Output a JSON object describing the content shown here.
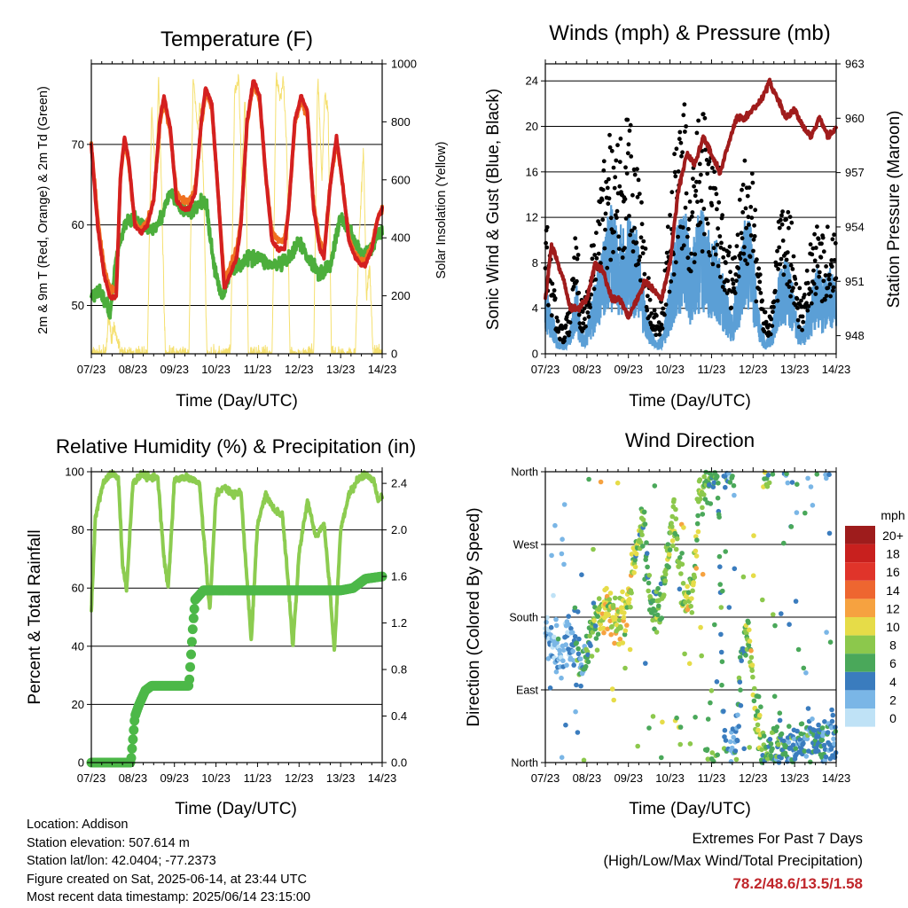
{
  "x_tick_labels": [
    "07/23",
    "08/23",
    "09/23",
    "10/23",
    "11/23",
    "12/23",
    "13/23",
    "14/23"
  ],
  "colors": {
    "t2m": "#d42020",
    "t9m": "#f07020",
    "td": "#4cae3c",
    "solar": "#f5e070",
    "wind": "#5b9fd6",
    "gust": "#000000",
    "pressure": "#a01c1c",
    "rh": "#8ccc50",
    "precip": "#4cb848"
  },
  "speed_colorbar": {
    "title": "mph",
    "labels": [
      "20+",
      "18",
      "16",
      "14",
      "12",
      "10",
      "8",
      "6",
      "4",
      "2",
      "0"
    ],
    "colors": [
      "#9e1c1c",
      "#c8201e",
      "#e0342a",
      "#ee6630",
      "#f6a240",
      "#e6dc48",
      "#8cc84c",
      "#4aa85a",
      "#3a7cbe",
      "#7ab6e6",
      "#bfe2f6"
    ]
  },
  "chart_data": [
    {
      "id": "temperature",
      "type": "line",
      "title": "Temperature (F)",
      "xlabel": "Time (Day/UTC)",
      "ylabel": "2m & 9m T (Red, Orange) & 2m Td (Green)",
      "ylabel_right": "Solar Insolation (Yellow)",
      "ylim": [
        44,
        80
      ],
      "ylim_right": [
        0,
        1000
      ],
      "yticks": [
        50,
        60,
        70
      ],
      "yticks_right": [
        0,
        200,
        400,
        600,
        800,
        1000
      ],
      "x_days": [
        0,
        7
      ],
      "series": [
        {
          "key": "t2m",
          "x": [
            0,
            0.15,
            0.3,
            0.45,
            0.6,
            0.7,
            0.8,
            0.9,
            1.05,
            1.2,
            1.35,
            1.5,
            1.65,
            1.75,
            1.9,
            2.05,
            2.2,
            2.35,
            2.5,
            2.65,
            2.75,
            2.9,
            3.05,
            3.2,
            3.35,
            3.5,
            3.6,
            3.75,
            3.9,
            4.05,
            4.2,
            4.35,
            4.5,
            4.65,
            4.75,
            4.9,
            5.05,
            5.2,
            5.35,
            5.5,
            5.6,
            5.75,
            5.9,
            6.05,
            6.2,
            6.35,
            6.5,
            6.6,
            6.75,
            6.9,
            7.0
          ],
          "values": [
            70,
            60,
            54,
            51,
            51,
            66,
            71,
            68,
            60,
            59,
            60,
            63,
            73,
            76,
            72,
            63,
            62,
            62,
            64,
            73,
            77,
            75,
            64,
            52,
            54,
            56,
            60,
            73,
            78,
            76,
            66,
            58,
            57,
            57,
            62,
            73,
            76,
            74,
            62,
            57,
            56,
            65,
            71,
            65,
            58,
            56,
            55,
            55,
            57,
            61,
            62
          ]
        },
        {
          "key": "t9m",
          "x": [
            0,
            0.15,
            0.3,
            0.45,
            0.6,
            0.7,
            0.8,
            0.9,
            1.05,
            1.2,
            1.35,
            1.5,
            1.65,
            1.75,
            1.9,
            2.05,
            2.2,
            2.35,
            2.5,
            2.65,
            2.75,
            2.9,
            3.05,
            3.2,
            3.35,
            3.5,
            3.6,
            3.75,
            3.9,
            4.05,
            4.2,
            4.35,
            4.5,
            4.65,
            4.75,
            4.9,
            5.05,
            5.2,
            5.35,
            5.5,
            5.6,
            5.75,
            5.9,
            6.05,
            6.2,
            6.35,
            6.5,
            6.6,
            6.75,
            6.9,
            7.0
          ],
          "values": [
            70,
            61,
            55,
            52,
            52,
            66,
            70.5,
            67.5,
            60,
            59.5,
            60.5,
            63,
            72.5,
            75.5,
            71.5,
            64,
            63,
            63,
            64.5,
            72.5,
            76.5,
            74.5,
            64,
            53,
            55,
            57,
            60.5,
            72.5,
            77.5,
            75.5,
            66,
            59,
            58,
            58,
            62,
            72.5,
            75.5,
            73.5,
            62.5,
            58,
            56.5,
            65,
            70.5,
            65,
            58.5,
            56.5,
            55.5,
            55.5,
            57.5,
            61,
            62
          ]
        },
        {
          "key": "td",
          "x": [
            0,
            0.2,
            0.45,
            0.6,
            0.8,
            1.0,
            1.2,
            1.45,
            1.7,
            1.9,
            2.15,
            2.4,
            2.6,
            2.75,
            2.95,
            3.15,
            3.4,
            3.6,
            3.8,
            4.05,
            4.3,
            4.55,
            4.8,
            5.0,
            5.2,
            5.5,
            5.75,
            6.0,
            6.25,
            6.5,
            6.75,
            6.9,
            7.0
          ],
          "values": [
            51,
            52,
            49,
            56,
            60,
            61,
            60,
            59.5,
            61,
            64,
            62,
            61.5,
            62.5,
            63,
            55,
            51,
            55,
            55,
            56,
            56,
            55,
            55,
            56,
            58,
            56,
            54,
            55,
            61,
            59,
            56,
            57,
            59,
            59
          ]
        },
        {
          "key": "solar",
          "axis": "right",
          "x": [
            0,
            0.35,
            0.42,
            0.48,
            0.55,
            0.65,
            0.72,
            1.0,
            1.35,
            1.45,
            1.55,
            1.62,
            1.7,
            1.78,
            2.0,
            2.35,
            2.45,
            2.55,
            2.62,
            2.7,
            2.78,
            3.0,
            3.35,
            3.45,
            3.55,
            3.62,
            3.7,
            3.78,
            4.0,
            4.35,
            4.45,
            4.55,
            4.62,
            4.7,
            4.78,
            5.0,
            5.35,
            5.45,
            5.55,
            5.62,
            5.7,
            5.78,
            6.0,
            6.35,
            6.45,
            6.55,
            6.62,
            6.7,
            6.78,
            7.0
          ],
          "values": [
            0,
            0,
            140,
            60,
            80,
            40,
            0,
            0,
            0,
            840,
            600,
            960,
            500,
            0,
            0,
            0,
            960,
            780,
            860,
            600,
            0,
            0,
            0,
            900,
            950,
            600,
            880,
            0,
            0,
            0,
            960,
            880,
            940,
            720,
            0,
            0,
            0,
            970,
            600,
            900,
            840,
            0,
            0,
            0,
            420,
            700,
            200,
            300,
            0,
            0
          ]
        }
      ]
    },
    {
      "id": "winds",
      "type": "scatter",
      "title": "Winds (mph) & Pressure (mb)",
      "xlabel": "Time (Day/UTC)",
      "ylabel": "Sonic Wind & Gust (Blue, Black)",
      "ylabel_right": "Station Pressure (Maroon)",
      "ylim": [
        0,
        25.5
      ],
      "ylim_right": [
        947,
        963
      ],
      "yticks": [
        0,
        4,
        8,
        12,
        16,
        20,
        24
      ],
      "yticks_right": [
        948,
        951,
        954,
        957,
        960,
        963
      ],
      "x_days": [
        0,
        7
      ],
      "wind_envelope": {
        "x": [
          0,
          0.15,
          0.3,
          0.45,
          0.6,
          0.75,
          0.85,
          1.0,
          1.2,
          1.4,
          1.55,
          1.7,
          1.85,
          2.0,
          2.2,
          2.35,
          2.55,
          2.7,
          2.85,
          3.0,
          3.15,
          3.35,
          3.5,
          3.65,
          3.8,
          3.95,
          4.15,
          4.3,
          4.5,
          4.65,
          4.8,
          4.95,
          5.1,
          5.3,
          5.45,
          5.6,
          5.75,
          5.9,
          6.05,
          6.2,
          6.4,
          6.55,
          6.7,
          6.85,
          7.0
        ],
        "values": [
          6,
          4,
          1,
          1,
          2,
          6,
          2,
          2,
          6,
          9,
          12,
          12,
          10,
          11,
          10,
          6,
          2,
          1,
          2,
          6,
          10,
          12,
          8,
          11,
          12,
          10,
          9,
          6,
          3,
          7,
          11,
          11,
          4,
          1,
          2,
          6,
          8,
          7,
          3,
          2,
          5,
          7,
          6,
          7,
          6
        ]
      },
      "gust_envelope": {
        "x": [
          0,
          0.15,
          0.3,
          0.45,
          0.6,
          0.75,
          0.85,
          1.0,
          1.2,
          1.4,
          1.55,
          1.7,
          1.85,
          2.0,
          2.2,
          2.35,
          2.55,
          2.7,
          2.85,
          3.0,
          3.15,
          3.35,
          3.5,
          3.65,
          3.8,
          3.95,
          4.15,
          4.3,
          4.5,
          4.65,
          4.8,
          4.95,
          5.1,
          5.3,
          5.45,
          5.6,
          5.75,
          5.9,
          6.05,
          6.2,
          6.4,
          6.55,
          6.7,
          6.85,
          7.0
        ],
        "values": [
          11,
          7,
          3,
          2,
          4,
          12,
          4,
          5,
          11,
          15,
          18,
          19,
          17,
          19,
          17,
          11,
          4,
          3,
          5,
          12,
          17,
          20,
          14,
          18,
          19,
          16,
          15,
          12,
          7,
          13,
          17,
          18,
          8,
          3,
          4,
          10,
          12,
          11,
          6,
          4,
          9,
          10,
          10,
          10,
          9
        ]
      },
      "pressure": {
        "x": [
          0,
          0.15,
          0.3,
          0.45,
          0.6,
          0.8,
          1.0,
          1.2,
          1.4,
          1.6,
          1.8,
          2.0,
          2.2,
          2.4,
          2.6,
          2.8,
          3.0,
          3.2,
          3.4,
          3.6,
          3.8,
          4.0,
          4.2,
          4.4,
          4.6,
          4.8,
          5.0,
          5.2,
          5.4,
          5.6,
          5.8,
          6.0,
          6.2,
          6.4,
          6.6,
          6.8,
          7.0
        ],
        "values": [
          950,
          953,
          952,
          951,
          949.5,
          949.5,
          950,
          952,
          951.5,
          950,
          950,
          949,
          950,
          951,
          950.5,
          950,
          952,
          956,
          958,
          957.5,
          959,
          958,
          957,
          958.5,
          960,
          960,
          960.5,
          961,
          962,
          961,
          960,
          960.5,
          959.5,
          959,
          960,
          959,
          959.5
        ]
      }
    },
    {
      "id": "humidity",
      "type": "line",
      "title": "Relative Humidity (%) & Precipitation (in)",
      "xlabel": "Time (Day/UTC)",
      "ylabel": "Percent & Total Rainfall",
      "ylim": [
        0,
        100
      ],
      "ylim_right": [
        0,
        2.5
      ],
      "yticks": [
        0,
        20,
        40,
        60,
        80,
        100
      ],
      "yticks_right": [
        0.0,
        0.4,
        0.8,
        1.2,
        1.6,
        2.0,
        2.4
      ],
      "x_days": [
        0,
        7
      ],
      "series": [
        {
          "key": "rh",
          "x": [
            0,
            0.1,
            0.3,
            0.5,
            0.65,
            0.75,
            0.85,
            1.0,
            1.2,
            1.4,
            1.6,
            1.75,
            1.85,
            2.0,
            2.2,
            2.4,
            2.6,
            2.75,
            2.85,
            3.0,
            3.2,
            3.4,
            3.6,
            3.75,
            3.85,
            4.0,
            4.2,
            4.4,
            4.6,
            4.75,
            4.85,
            5.0,
            5.2,
            5.4,
            5.6,
            5.75,
            5.85,
            6.0,
            6.2,
            6.4,
            6.6,
            6.8,
            6.9,
            7.0
          ],
          "values": [
            52,
            85,
            97,
            99,
            98,
            68,
            60,
            96,
            99,
            98,
            98,
            70,
            60,
            97,
            98,
            98,
            96,
            70,
            52,
            92,
            95,
            92,
            93,
            62,
            42,
            82,
            92,
            87,
            85,
            60,
            40,
            72,
            90,
            78,
            82,
            58,
            38,
            80,
            92,
            97,
            99,
            97,
            90,
            92
          ]
        },
        {
          "key": "precip",
          "axis": "right",
          "x": [
            0,
            0.5,
            0.95,
            1.05,
            1.15,
            1.3,
            1.45,
            2.35,
            2.45,
            2.5,
            2.7,
            3.0,
            3.5,
            4.0,
            4.5,
            5.0,
            5.5,
            6.0,
            6.3,
            6.6,
            7.0
          ],
          "values": [
            0,
            0,
            0,
            0.4,
            0.5,
            0.62,
            0.66,
            0.66,
            1.2,
            1.4,
            1.48,
            1.48,
            1.48,
            1.48,
            1.48,
            1.48,
            1.48,
            1.48,
            1.5,
            1.58,
            1.6
          ]
        }
      ]
    },
    {
      "id": "direction",
      "type": "scatter",
      "title": "Wind Direction",
      "xlabel": "Time (Day/UTC)",
      "ylabel": "Direction (Colored By Speed)",
      "ylim": [
        0,
        360
      ],
      "ytick_labels": [
        "North",
        "East",
        "South",
        "West",
        "North"
      ],
      "yticks": [
        0,
        90,
        180,
        270,
        360
      ],
      "colorbar_label": "mph",
      "x_days": [
        0,
        7
      ],
      "direction_trend": {
        "x": [
          0,
          0.2,
          0.4,
          0.55,
          0.7,
          0.85,
          1.0,
          1.2,
          1.4,
          1.6,
          1.75,
          1.9,
          2.05,
          2.2,
          2.35,
          2.5,
          2.65,
          2.8,
          2.95,
          3.1,
          3.25,
          3.4,
          3.55,
          3.7,
          3.85,
          4.0,
          4.15,
          4.3,
          4.45,
          4.6,
          4.75,
          4.9,
          5.05,
          5.2,
          5.35,
          5.5,
          5.65,
          5.8,
          5.95,
          6.1,
          6.3,
          6.5,
          6.7,
          6.85,
          7.0
        ],
        "values": [
          170,
          150,
          130,
          160,
          150,
          120,
          140,
          175,
          190,
          185,
          175,
          180,
          230,
          270,
          300,
          210,
          180,
          200,
          270,
          310,
          230,
          195,
          220,
          320,
          350,
          345,
          350,
          10,
          0,
          20,
          150,
          160,
          70,
          20,
          0,
          30,
          20,
          10,
          15,
          20,
          25,
          30,
          20,
          25,
          35
        ]
      },
      "speed_trend": {
        "x": [
          0,
          0.5,
          1.0,
          1.5,
          2.0,
          2.5,
          3.0,
          3.5,
          4.0,
          4.5,
          5.0,
          5.5,
          6.0,
          6.5,
          7.0
        ],
        "values": [
          2,
          2,
          5,
          10,
          9,
          6,
          8,
          9,
          7,
          3,
          9,
          6,
          4,
          4,
          4
        ]
      }
    }
  ],
  "metadata": {
    "location": "Location: Addison",
    "elevation": "Station elevation: 507.614 m",
    "latlon": "Station lat/lon: 42.0404; -77.2373",
    "created": "Figure created on Sat, 2025-06-14, at 23:44 UTC",
    "timestamp": "Most recent data timestamp: 2025/06/14 23:15:00"
  },
  "extremes": {
    "title": "Extremes For Past 7 Days",
    "subtitle": "(High/Low/Max Wind/Total Precipitation)",
    "values": "78.2/48.6/13.5/1.58"
  }
}
